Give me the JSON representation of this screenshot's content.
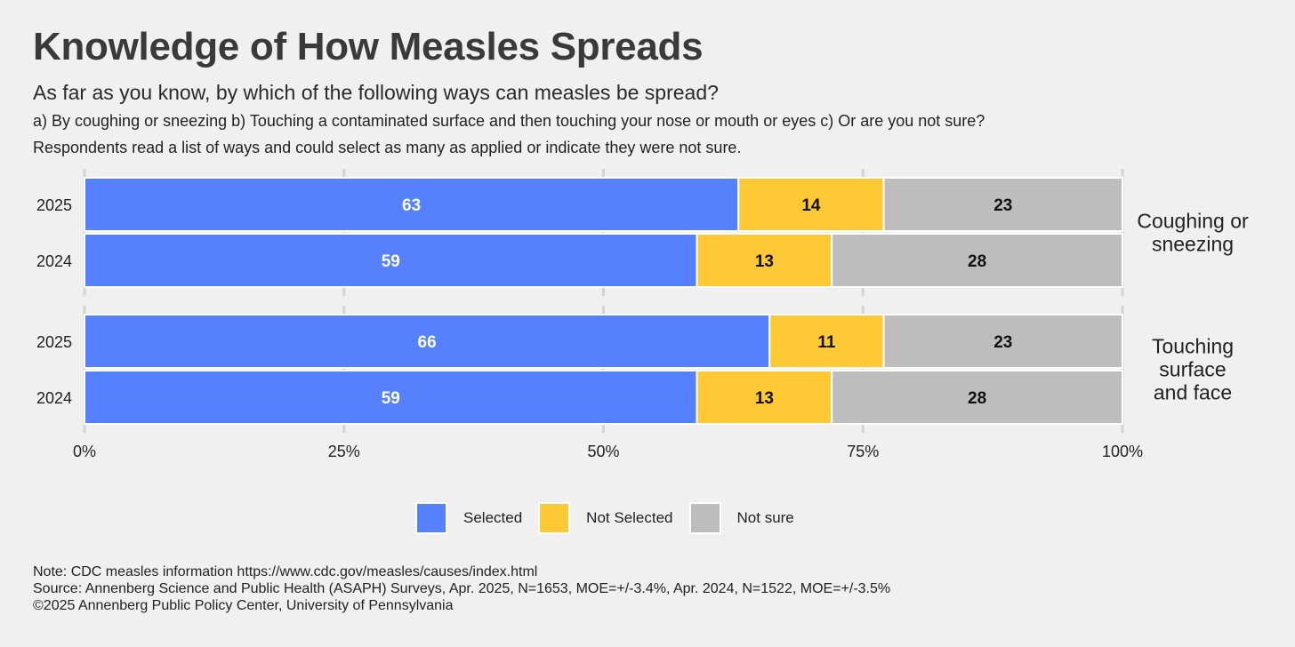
{
  "header": {
    "title": "Knowledge of How Measles Spreads",
    "subtitle": "As far as you know, by which of the following ways can measles be spread?",
    "desc_line1": "a) By coughing or sneezing b) Touching a contaminated surface and then touching your nose or mouth or eyes c) Or are you not sure?",
    "desc_line2": "Respondents read a list of ways and could select as many as applied or indicate they were not sure."
  },
  "legend": {
    "items": [
      {
        "label": "Selected",
        "color": "#5581ff"
      },
      {
        "label": "Not Selected",
        "color": "#ffc935"
      },
      {
        "label": "Not sure",
        "color": "#bdbdbd"
      }
    ]
  },
  "footer": {
    "note": "Note: CDC measles information https://www.cdc.gov/measles/causes/index.html",
    "source": "Source: Annenberg Science and Public Health (ASAPH) Surveys, Apr. 2025, N=1653, MOE=+/-3.4%, Apr. 2024, N=1522, MOE=+/-3.5%",
    "copyright": "©2025 Annenberg Public Policy Center, University of Pennsylvania"
  },
  "chart_data": {
    "type": "bar",
    "orientation": "horizontal",
    "stacked": true,
    "xlim": [
      0,
      100
    ],
    "x_ticks": [
      0,
      25,
      50,
      75,
      100
    ],
    "x_tick_labels": [
      "0%",
      "25%",
      "50%",
      "75%",
      "100%"
    ],
    "xlabel": "",
    "ylabel": "",
    "grid": true,
    "legend_position": "bottom",
    "series_names": [
      "Selected",
      "Not Selected",
      "Not sure"
    ],
    "colors": [
      "#5581ff",
      "#ffc935",
      "#bdbdbd"
    ],
    "label_colors": [
      "#ffffff",
      "#111111",
      "#111111"
    ],
    "panels": [
      {
        "label_lines": [
          "Coughing or",
          "sneezing"
        ],
        "rows": [
          {
            "year": "2025",
            "values": [
              63,
              14,
              23
            ]
          },
          {
            "year": "2024",
            "values": [
              59,
              13,
              28
            ]
          }
        ]
      },
      {
        "label_lines": [
          "Touching",
          "surface",
          "and face"
        ],
        "rows": [
          {
            "year": "2025",
            "values": [
              66,
              11,
              23
            ]
          },
          {
            "year": "2024",
            "values": [
              59,
              13,
              28
            ]
          }
        ]
      }
    ]
  }
}
